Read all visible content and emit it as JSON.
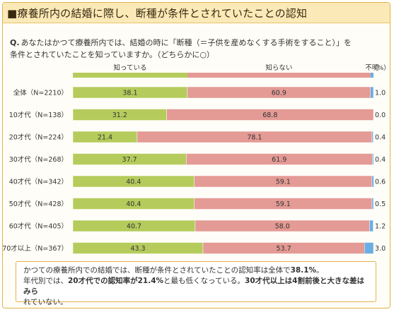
{
  "title": "■療養所内の結婚に際し、断種が条件とされていたことの認知",
  "question": {
    "prefix": "Q.",
    "line1": "あなたはかつて療養所内では、結婚の時に「断種（＝子供を産めなくする手術をすること）」を",
    "line2": "条件とされていたことを知っていますか。（どちらかに○）"
  },
  "chart_data": {
    "type": "bar",
    "orientation": "horizontal",
    "stacked": true,
    "percent_label": "（%）",
    "categories": [
      "全体（N=2210）",
      "10才代（N=138）",
      "20才代（N=224）",
      "30才代（N=268）",
      "40才代（N=342）",
      "50才代（N=428）",
      "60才代（N=405）",
      "70才以上（N=367）"
    ],
    "series": [
      {
        "name": "知っている",
        "color": "#b5cc5c",
        "values": [
          38.1,
          31.2,
          21.4,
          37.7,
          40.4,
          40.4,
          40.7,
          43.3
        ]
      },
      {
        "name": "知らない",
        "color": "#e49a95",
        "values": [
          60.9,
          68.8,
          78.1,
          61.9,
          59.1,
          59.1,
          58.0,
          53.7
        ]
      },
      {
        "name": "不明",
        "color": "#6aaee3",
        "values": [
          1.0,
          0.0,
          0.4,
          0.4,
          0.6,
          0.5,
          1.2,
          3.0
        ]
      }
    ],
    "xlim": [
      0,
      100
    ],
    "legend_position": "top",
    "grid": false
  },
  "note": {
    "l1a": "かつての療養所内での結婚では、断種が条件とされていたことの認知率は全体で",
    "l1b": "38.1%",
    "l1c": "。",
    "l2a": "年代別では、",
    "l2b": "20才代での認知率が21.4%",
    "l2c": "と最も低くなっている。",
    "l2d": "30才代以上は4割前後と大きな差はみら",
    "l3": "れていない。"
  }
}
